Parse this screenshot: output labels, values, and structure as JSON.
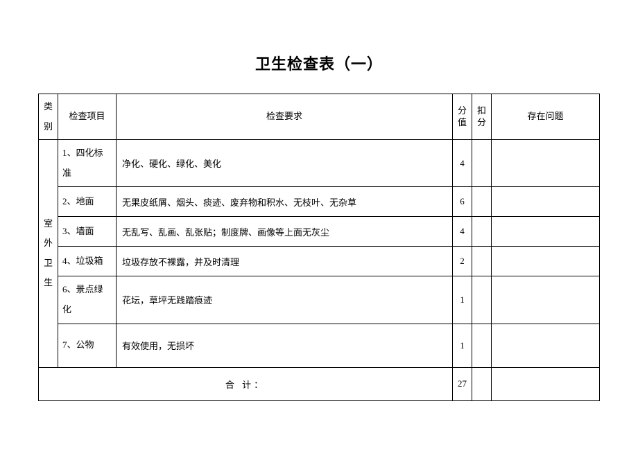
{
  "title": "卫生检查表（一）",
  "headers": {
    "category": "类别",
    "item": "检查项目",
    "requirement": "检查要求",
    "score": "分值",
    "deduct": "扣分",
    "problem": "存在问题"
  },
  "category_label": "室外卫生",
  "rows": [
    {
      "item": "1、四化标准",
      "requirement": "净化、硬化、绿化、美化",
      "score": "4"
    },
    {
      "item": "2、地面",
      "requirement": "无果皮纸屑、烟头、痰迹、废弃物和积水、无枝叶、无杂草",
      "score": "6"
    },
    {
      "item": "3、墙面",
      "requirement": "无乱写、乱画、乱张贴；制度牌、画像等上面无灰尘",
      "score": "4"
    },
    {
      "item": "4、垃圾箱",
      "requirement": "垃圾存放不裸露，并及时清理",
      "score": "2"
    },
    {
      "item": "6、景点绿化",
      "requirement": "花坛，草坪无践踏痕迹",
      "score": "1"
    },
    {
      "item": "7、公物",
      "requirement": "有效使用，无损坏",
      "score": "1"
    }
  ],
  "total_label": "合  计：",
  "total_value": "27"
}
